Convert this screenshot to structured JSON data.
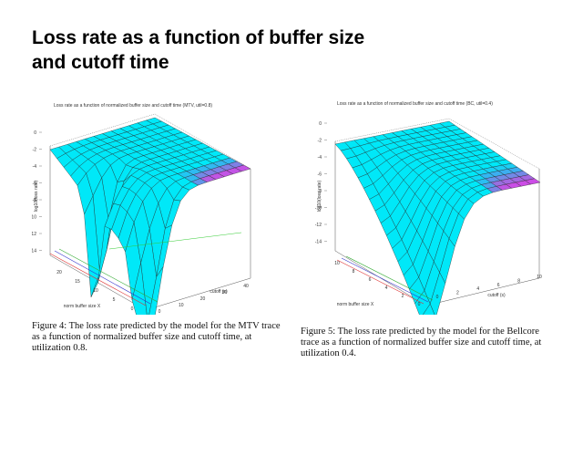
{
  "slide": {
    "title_line1": "Loss rate as a function of buffer size",
    "title_line2": "and cutoff time"
  },
  "figures": [
    {
      "plot_title": "Loss rate as a function of normalized buffer size and cutoff time (MTV, util=0.8)",
      "z_axis_label": "log10(loss rate)",
      "x_axis_label": "norm buffer size X",
      "y_axis_label": "cutoff (s)",
      "z_ticks": [
        "0",
        "-2",
        "-4",
        "-6",
        "-8",
        "-10",
        "-12",
        "-14"
      ],
      "x_ticks": [
        "20",
        "15",
        "10",
        "5",
        "0"
      ],
      "y_ticks": [
        "0",
        "10",
        "20",
        "30",
        "40"
      ],
      "caption": "Figure 4: The loss rate predicted by the model for the MTV trace as a function of normalized buffer size and cutoff time, at utilization 0.8."
    },
    {
      "plot_title": "Loss rate as a function of normalized buffer size and cutoff time (BC, util=0.4)",
      "z_axis_label": "log10(loss rate)",
      "x_axis_label": "norm buffer size X",
      "y_axis_label": "cutoff (s)",
      "z_ticks": [
        "0",
        "-2",
        "-4",
        "-6",
        "-8",
        "-10",
        "-12",
        "-14"
      ],
      "x_ticks": [
        "10",
        "8",
        "6",
        "4",
        "2",
        "0"
      ],
      "y_ticks": [
        "0",
        "2",
        "4",
        "6",
        "8",
        "10"
      ],
      "caption": "Figure 5: The loss rate predicted by the model for the Bellcore trace as a function of normalized buffer size and cutoff time, at utilization 0.4."
    }
  ],
  "colors": {
    "surface_top": "#e040e8",
    "surface_mid": "#9a6ee0",
    "surface_low": "#3ab0f0",
    "surface_bottom": "#00e8f8",
    "mesh": "#222222",
    "axis": "#555555"
  }
}
